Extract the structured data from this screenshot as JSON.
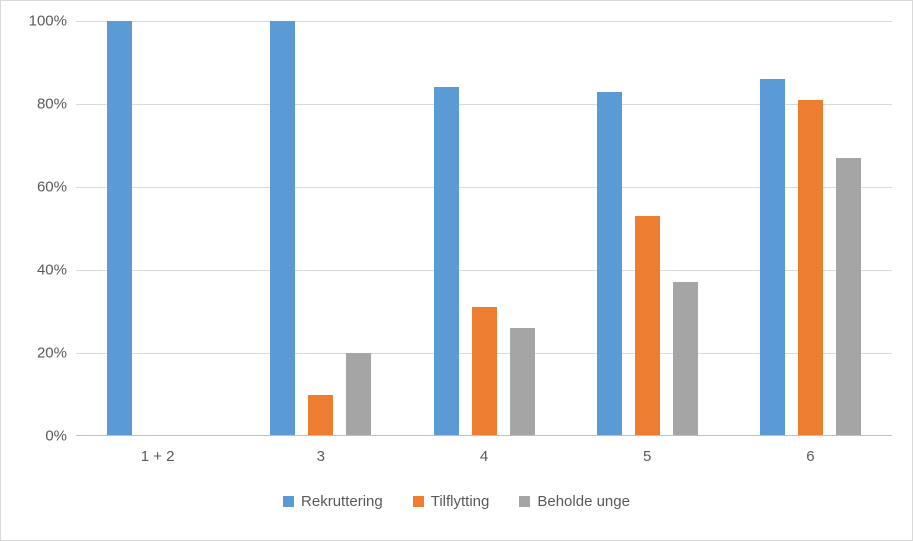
{
  "chart_data": {
    "type": "bar",
    "title": "",
    "categories": [
      "1 + 2",
      "3",
      "4",
      "5",
      "6"
    ],
    "series": [
      {
        "name": "Rekruttering",
        "color": "#5B9BD5",
        "values": [
          100,
          100,
          84,
          83,
          86
        ]
      },
      {
        "name": "Tilflytting",
        "color": "#ED7D31",
        "values": [
          null,
          10,
          31,
          53,
          81
        ]
      },
      {
        "name": "Beholde unge",
        "color": "#A5A5A5",
        "values": [
          null,
          20,
          26,
          37,
          67
        ]
      }
    ],
    "ylim": [
      0,
      100
    ],
    "yticks": [
      0,
      20,
      40,
      60,
      80,
      100
    ],
    "ytick_labels": [
      "0%",
      "20%",
      "40%",
      "60%",
      "80%",
      "100%"
    ],
    "grid": true,
    "legend_position": "bottom"
  },
  "colors": {
    "background": "#FFFFFF",
    "chart_border": "#D9D9D9",
    "gridline": "#D9D9D9",
    "axis_line": "#BFBFBF",
    "text": "#595959"
  }
}
